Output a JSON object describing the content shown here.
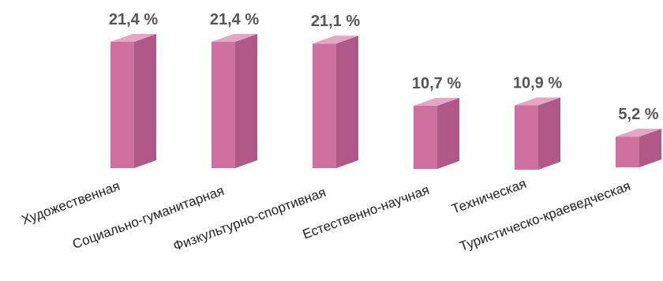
{
  "chart_data": {
    "type": "bar",
    "style": "3d-columns",
    "categories": [
      "Художественная",
      "Социально-гуманитарная",
      "Физкультурно-спортивная",
      "Естественно-научная",
      "Техническая",
      "Туристическо-краеведческая"
    ],
    "values": [
      21.4,
      21.4,
      21.1,
      10.7,
      10.9,
      5.2
    ],
    "value_labels": [
      "21,4 %",
      "21,4 %",
      "21,1 %",
      "10,7 %",
      "10,9 %",
      "5,2  %"
    ],
    "title": "",
    "xlabel": "",
    "ylabel": "",
    "ylim": [
      0,
      21.4
    ],
    "grid": false,
    "legend": "none",
    "colors": {
      "front": "#CE70A0",
      "side": "#B05888",
      "top": "#E3A6C4",
      "value_text": "#555555",
      "category_text": "#222222"
    }
  }
}
